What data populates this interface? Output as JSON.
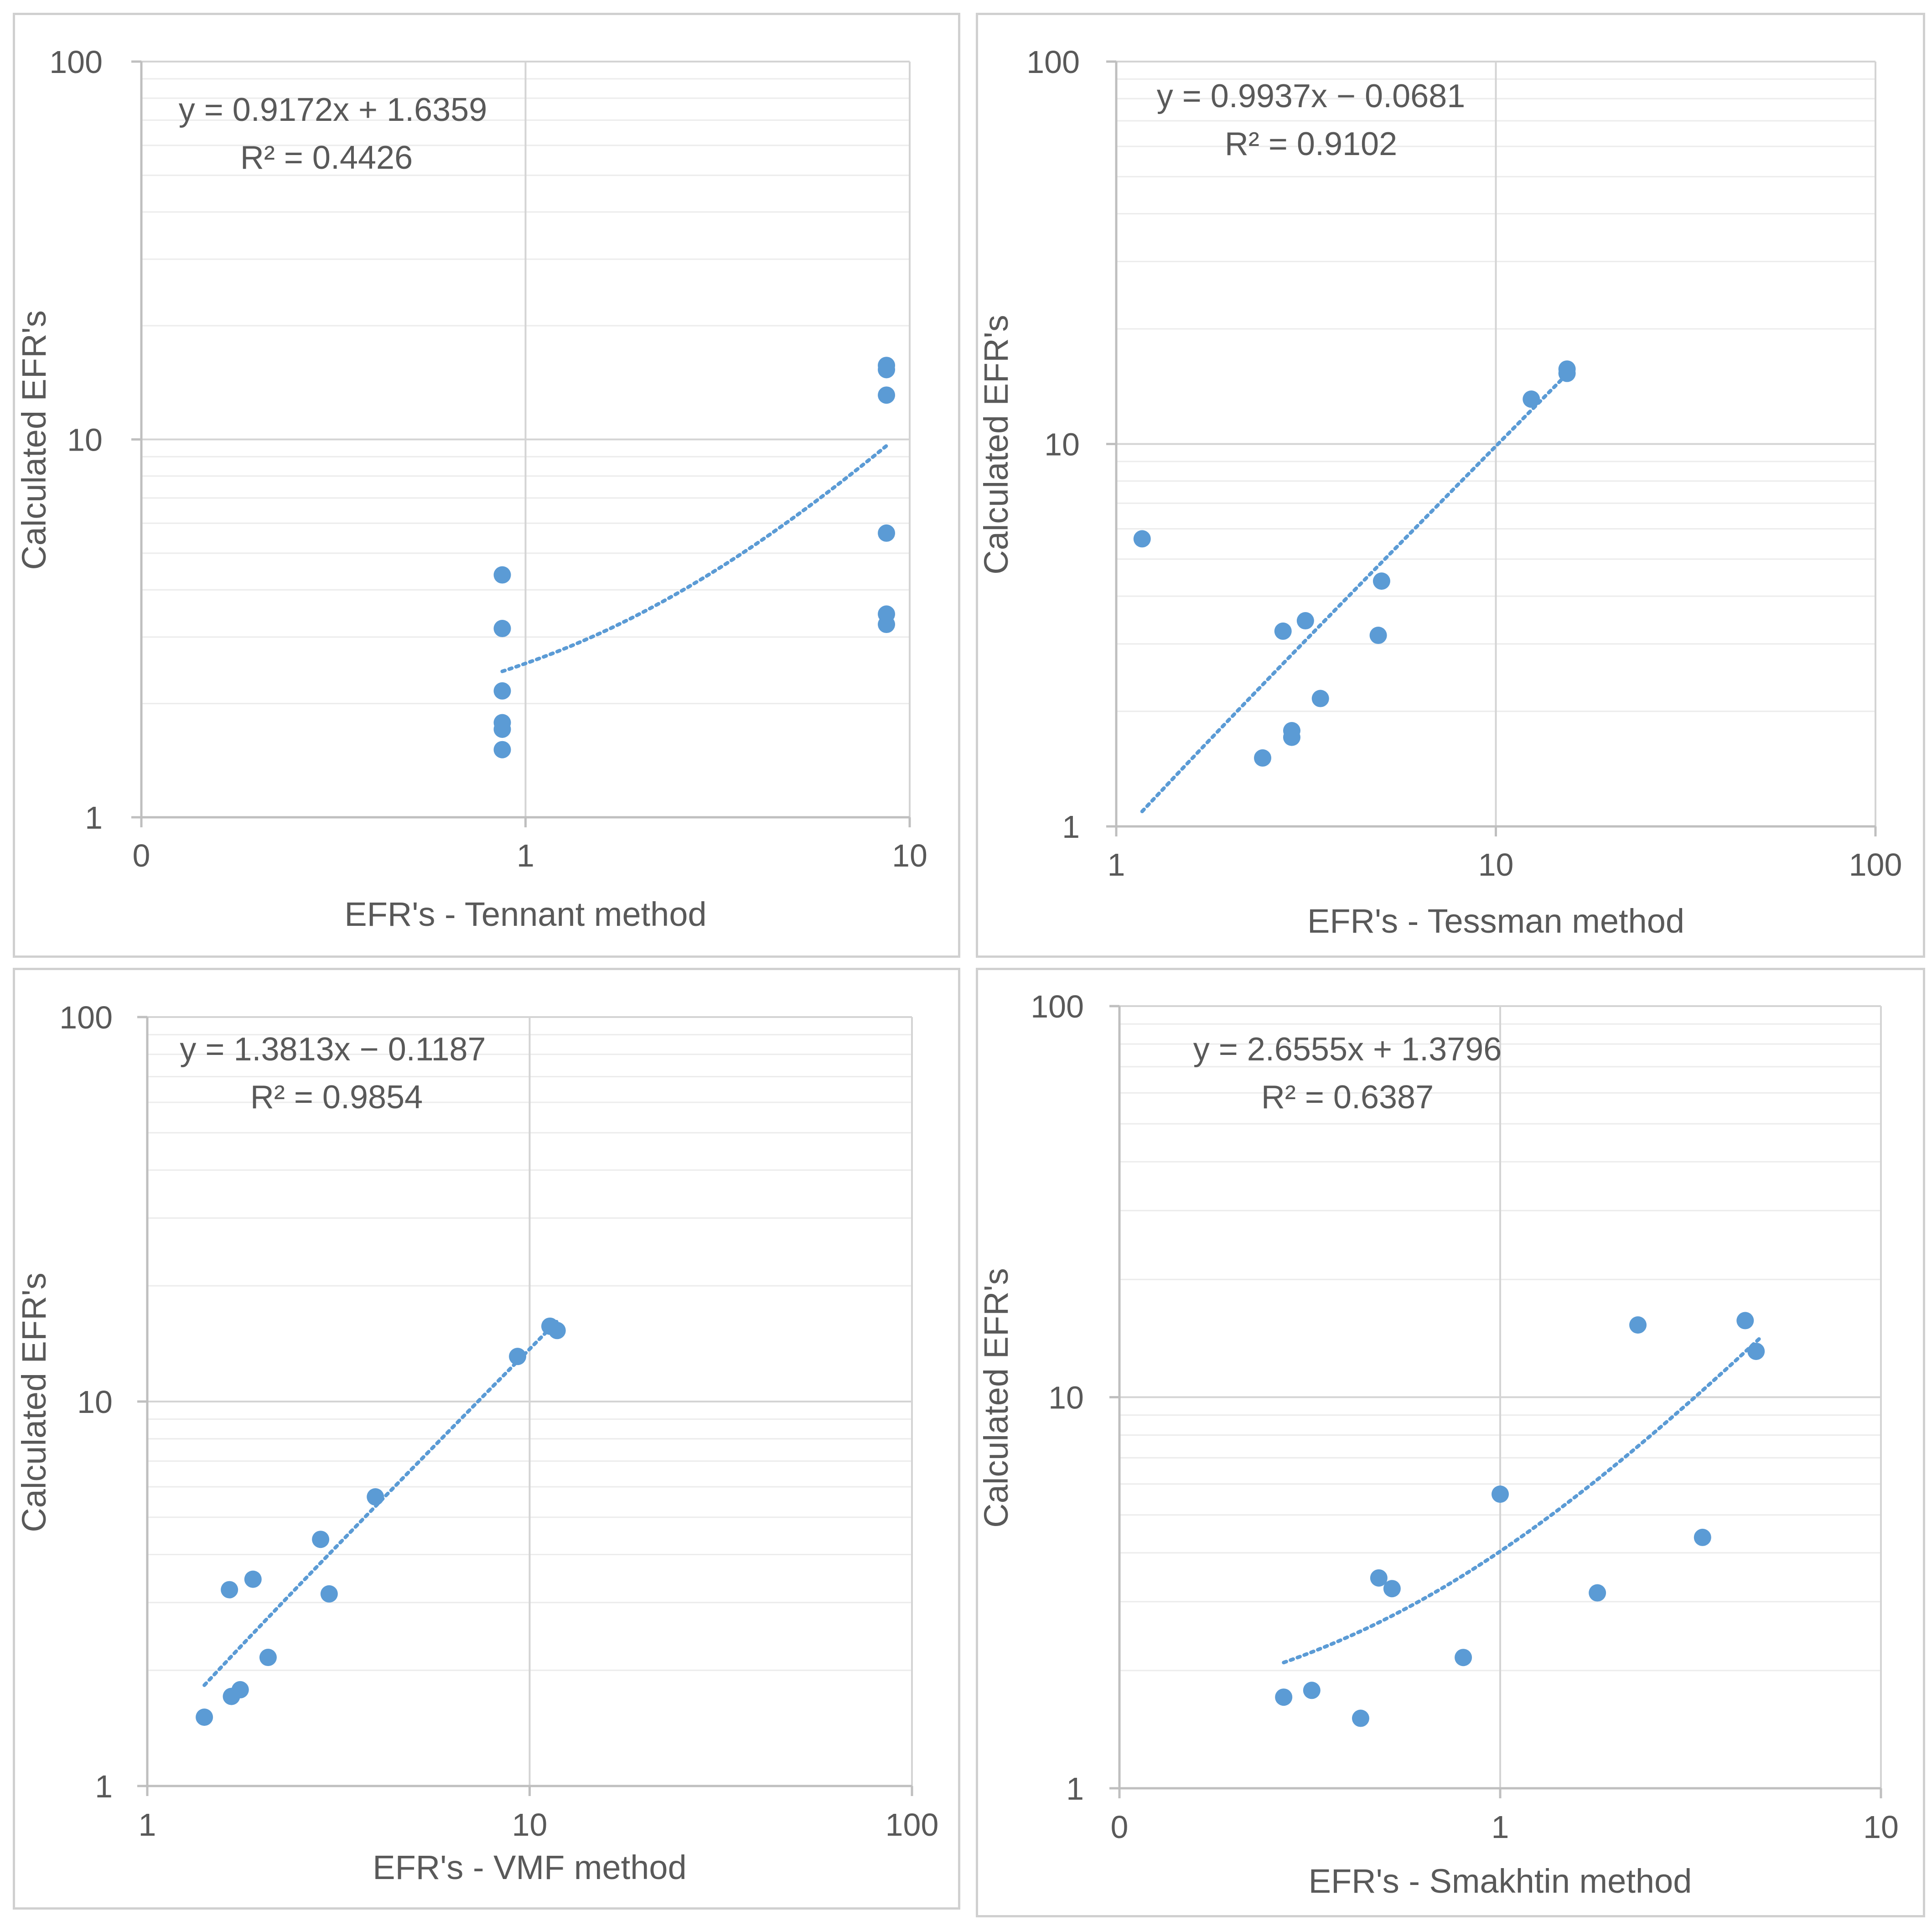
{
  "chart_data": [
    {
      "type": "scatter",
      "title": "",
      "xlabel": "EFR's - Tennant method",
      "ylabel": "Calculated EFR's",
      "x_scale": "log",
      "y_scale": "log",
      "xlim": [
        0.1,
        10
      ],
      "ylim": [
        1,
        100
      ],
      "x_ticks": [
        0.1,
        1,
        10
      ],
      "x_tick_labels": [
        "0",
        "1",
        "10"
      ],
      "y_ticks": [
        1,
        10,
        100
      ],
      "y_tick_labels": [
        "1",
        "10",
        "100"
      ],
      "grid": true,
      "marker_color": "#5b9bd5",
      "trendline_color": "#5b9bd5",
      "points": [
        {
          "x": 0.87,
          "y": 1.51
        },
        {
          "x": 0.87,
          "y": 1.71
        },
        {
          "x": 0.87,
          "y": 1.78
        },
        {
          "x": 0.87,
          "y": 2.16
        },
        {
          "x": 0.87,
          "y": 3.16
        },
        {
          "x": 0.87,
          "y": 4.38
        },
        {
          "x": 8.7,
          "y": 3.24
        },
        {
          "x": 8.7,
          "y": 3.45
        },
        {
          "x": 8.7,
          "y": 5.65
        },
        {
          "x": 8.7,
          "y": 13.1
        },
        {
          "x": 8.7,
          "y": 15.3
        },
        {
          "x": 8.7,
          "y": 15.7
        }
      ],
      "trendline": {
        "type": "linear",
        "slope": 0.9172,
        "intercept": 1.6359,
        "x_range": [
          0.87,
          8.7
        ]
      },
      "equation": "y = 0.9172x + 1.6359",
      "r_squared": "R² = 0.4426"
    },
    {
      "type": "scatter",
      "title": "",
      "xlabel": "EFR's - Tessman method",
      "ylabel": "Calculated EFR's",
      "x_scale": "log",
      "y_scale": "log",
      "xlim": [
        1,
        100
      ],
      "ylim": [
        1,
        100
      ],
      "x_ticks": [
        1,
        10,
        100
      ],
      "x_tick_labels": [
        "1",
        "10",
        "100"
      ],
      "y_ticks": [
        1,
        10,
        100
      ],
      "y_tick_labels": [
        "1",
        "10",
        "100"
      ],
      "grid": true,
      "marker_color": "#5b9bd5",
      "trendline_color": "#5b9bd5",
      "points": [
        {
          "x": 1.17,
          "y": 5.65
        },
        {
          "x": 2.43,
          "y": 1.51
        },
        {
          "x": 2.9,
          "y": 1.71
        },
        {
          "x": 2.9,
          "y": 1.78
        },
        {
          "x": 2.75,
          "y": 3.24
        },
        {
          "x": 3.15,
          "y": 3.45
        },
        {
          "x": 3.45,
          "y": 2.16
        },
        {
          "x": 4.9,
          "y": 3.16
        },
        {
          "x": 5.0,
          "y": 4.38
        },
        {
          "x": 12.4,
          "y": 13.1
        },
        {
          "x": 15.4,
          "y": 15.3
        },
        {
          "x": 15.4,
          "y": 15.7
        }
      ],
      "trendline": {
        "type": "linear",
        "slope": 0.9937,
        "intercept": -0.0681,
        "x_range": [
          1.17,
          15.4
        ]
      },
      "equation": "y = 0.9937x − 0.0681",
      "r_squared": "R² = 0.9102"
    },
    {
      "type": "scatter",
      "title": "",
      "xlabel": "EFR's - VMF method",
      "ylabel": "Calculated EFR's",
      "x_scale": "log",
      "y_scale": "log",
      "xlim": [
        1,
        100
      ],
      "ylim": [
        1,
        100
      ],
      "x_ticks": [
        1,
        10,
        100
      ],
      "x_tick_labels": [
        "1",
        "10",
        "100"
      ],
      "y_ticks": [
        1,
        10,
        100
      ],
      "y_tick_labels": [
        "1",
        "10",
        "100"
      ],
      "grid": true,
      "marker_color": "#5b9bd5",
      "trendline_color": "#5b9bd5",
      "points": [
        {
          "x": 1.41,
          "y": 1.51
        },
        {
          "x": 1.66,
          "y": 1.71
        },
        {
          "x": 1.75,
          "y": 1.78
        },
        {
          "x": 2.07,
          "y": 2.16
        },
        {
          "x": 1.64,
          "y": 3.24
        },
        {
          "x": 1.89,
          "y": 3.45
        },
        {
          "x": 2.99,
          "y": 3.16
        },
        {
          "x": 2.84,
          "y": 4.38
        },
        {
          "x": 3.95,
          "y": 5.65
        },
        {
          "x": 9.3,
          "y": 13.1
        },
        {
          "x": 11.3,
          "y": 15.7
        },
        {
          "x": 11.8,
          "y": 15.3
        }
      ],
      "trendline": {
        "type": "linear",
        "slope": 1.3813,
        "intercept": -0.1187,
        "x_range": [
          1.41,
          11.8
        ]
      },
      "equation": "y = 1.3813x − 0.1187",
      "r_squared": "R² = 0.9854"
    },
    {
      "type": "scatter",
      "title": "",
      "xlabel": "EFR's - Smakhtin method",
      "ylabel": "Calculated EFR's",
      "x_scale": "log",
      "y_scale": "log",
      "xlim": [
        0.1,
        10
      ],
      "ylim": [
        1,
        100
      ],
      "x_ticks": [
        0.1,
        1,
        10
      ],
      "x_tick_labels": [
        "0",
        "1",
        "10"
      ],
      "y_ticks": [
        1,
        10,
        100
      ],
      "y_tick_labels": [
        "1",
        "10",
        "100"
      ],
      "grid": true,
      "marker_color": "#5b9bd5",
      "trendline_color": "#5b9bd5",
      "points": [
        {
          "x": 0.27,
          "y": 1.71
        },
        {
          "x": 0.32,
          "y": 1.78
        },
        {
          "x": 0.43,
          "y": 1.51
        },
        {
          "x": 0.8,
          "y": 2.16
        },
        {
          "x": 0.48,
          "y": 3.45
        },
        {
          "x": 0.52,
          "y": 3.24
        },
        {
          "x": 1.0,
          "y": 5.65
        },
        {
          "x": 1.8,
          "y": 3.16
        },
        {
          "x": 2.3,
          "y": 15.3
        },
        {
          "x": 3.4,
          "y": 4.38
        },
        {
          "x": 4.4,
          "y": 15.7
        },
        {
          "x": 4.7,
          "y": 13.1
        }
      ],
      "trendline": {
        "type": "linear",
        "slope": 2.6555,
        "intercept": 1.3796,
        "x_range": [
          0.27,
          4.8
        ]
      },
      "equation": "y = 2.6555x + 1.3796",
      "r_squared": "R² = 0.6387"
    }
  ]
}
